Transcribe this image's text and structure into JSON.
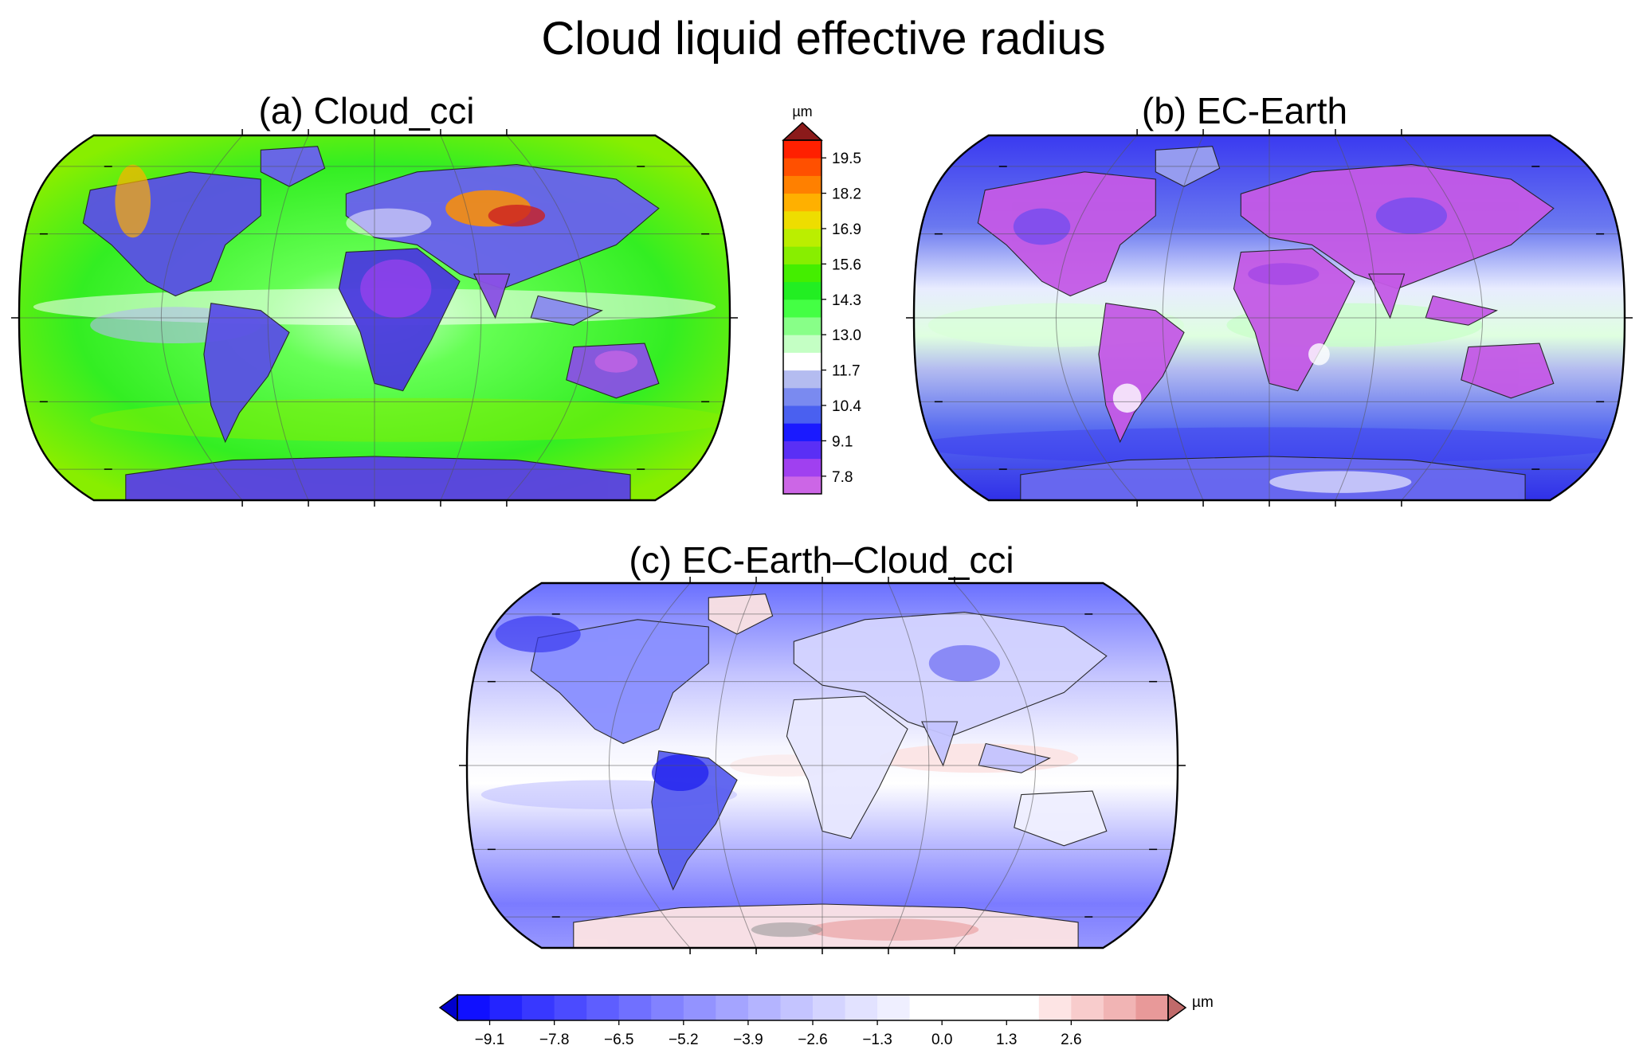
{
  "figure": {
    "title": "Cloud liquid effective radius"
  },
  "panels": [
    {
      "id": "a",
      "title": "(a) Cloud_cci",
      "palette": "cci"
    },
    {
      "id": "b",
      "title": "(b) EC-Earth",
      "palette": "ecearth"
    },
    {
      "id": "c",
      "title": "(c) EC-Earth–Cloud_cci",
      "palette": "diff"
    }
  ],
  "colorbar_abs": {
    "unit": "µm",
    "tick_labels": [
      "19.5",
      "18.2",
      "16.9",
      "15.6",
      "14.3",
      "13.0",
      "11.7",
      "10.4",
      "9.1",
      "7.8"
    ],
    "colors_bottom_to_top": [
      "#cc66e6",
      "#a040f0",
      "#5a2ff5",
      "#1a1aff",
      "#4a60f0",
      "#7a8af0",
      "#b4bcf0",
      "#ffffff",
      "#c4ffc4",
      "#88ff88",
      "#44ff44",
      "#22ee22",
      "#44ee00",
      "#88ee00",
      "#bbee00",
      "#eedd00",
      "#ffb000",
      "#ff8000",
      "#ff5000",
      "#ff2000",
      "#8b1a1a"
    ]
  },
  "colorbar_diff": {
    "unit": "µm",
    "tick_labels": [
      "−9.1",
      "−7.8",
      "−6.5",
      "−5.2",
      "−3.9",
      "−2.6",
      "−1.3",
      "0.0",
      "1.3",
      "2.6"
    ],
    "colors_left_to_right": [
      "#0000cc",
      "#1010ff",
      "#2424ff",
      "#3838ff",
      "#4b4bff",
      "#5e5eff",
      "#7070ff",
      "#8282ff",
      "#9393ff",
      "#a4a4ff",
      "#b4b4ff",
      "#c4c4ff",
      "#d4d4ff",
      "#e2e2ff",
      "#efefff",
      "#ffffff",
      "#ffffff",
      "#ffffff",
      "#ffffff",
      "#fde4e4",
      "#f8cccc",
      "#f1b4b4",
      "#e89999",
      "#c06a6a"
    ]
  }
}
